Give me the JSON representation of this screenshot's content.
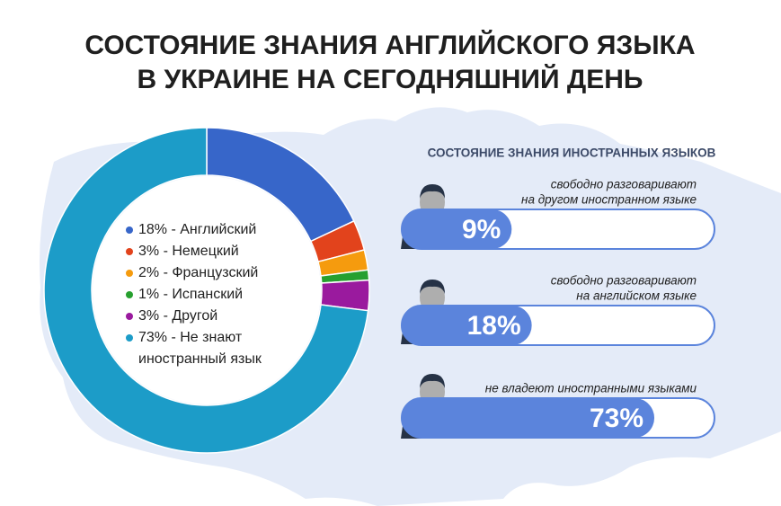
{
  "title": [
    "СОСТОЯНИЕ ЗНАНИЯ АНГЛИЙСКОГО ЯЗЫКА",
    "В УКРАИНЕ НА СЕГОДНЯШНИЙ ДЕНЬ"
  ],
  "chart_data": [
    {
      "type": "pie",
      "legend": [
        "18% - Английский",
        "3% - Немецкий",
        "2% - Французский",
        "1% - Испанский",
        "3% - Другой",
        "73% - Не знают иностранный язык"
      ],
      "values": [
        18,
        3,
        2,
        1,
        3,
        73
      ],
      "colors": [
        "#3766c9",
        "#e2431c",
        "#f59b0e",
        "#27a02f",
        "#9a1a9e",
        "#1c9cc8"
      ]
    },
    {
      "type": "bar",
      "title": "СОСТОЯНИЕ ЗНАНИЯ ИНОСТРАННЫХ ЯЗЫКОВ",
      "categories": [
        [
          "свободно разговаривают",
          "на другом иностранном языке"
        ],
        [
          "свободно разговаривают",
          "на английском языке"
        ],
        [
          "не владеют иностранными языками"
        ]
      ],
      "values": [
        9,
        18,
        73
      ],
      "value_labels": [
        "9%",
        "18%",
        "73%"
      ],
      "color": "#5b84dc"
    }
  ]
}
